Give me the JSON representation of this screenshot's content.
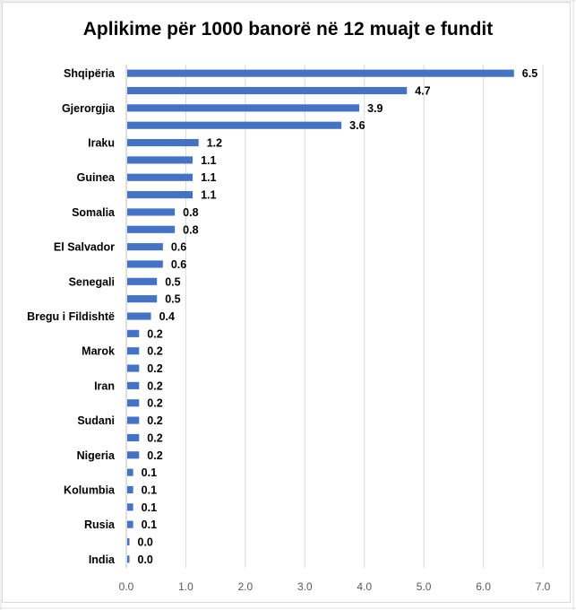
{
  "chart_data": {
    "type": "bar",
    "orientation": "horizontal",
    "title": "Aplikime për 1000 banorë në 12 muajt e fundit",
    "xlabel": "",
    "ylabel": "",
    "xlim": [
      0,
      7
    ],
    "xticks": [
      0,
      1,
      2,
      3,
      4,
      5,
      6,
      7
    ],
    "xtick_labels": [
      "0.0",
      "1.0",
      "2.0",
      "3.0",
      "4.0",
      "5.0",
      "6.0",
      "7.0"
    ],
    "grid": "vertical",
    "legend": "none",
    "bar_color": "#4472c4",
    "categories": [
      "Shqipëria",
      "",
      "Gjerorgjia",
      "",
      "Iraku",
      "",
      "Guinea",
      "",
      "Somalia",
      "",
      "El Salvador",
      "",
      "Senegali",
      "",
      "Bregu i Fildishtë",
      "",
      "Marok",
      "",
      "Iran",
      "",
      "Sudani",
      "",
      "Nigeria",
      "",
      "Kolumbia",
      "",
      "Rusia",
      "",
      "India"
    ],
    "values": [
      6.5,
      4.7,
      3.9,
      3.6,
      1.2,
      1.1,
      1.1,
      1.1,
      0.8,
      0.8,
      0.6,
      0.6,
      0.5,
      0.5,
      0.4,
      0.2,
      0.2,
      0.2,
      0.2,
      0.2,
      0.2,
      0.2,
      0.2,
      0.1,
      0.1,
      0.1,
      0.1,
      0.0,
      0.0
    ],
    "value_labels": [
      "6.5",
      "4.7",
      "3.9",
      "3.6",
      "1.2",
      "1.1",
      "1.1",
      "1.1",
      "0.8",
      "0.8",
      "0.6",
      "0.6",
      "0.5",
      "0.5",
      "0.4",
      "0.2",
      "0.2",
      "0.2",
      "0.2",
      "0.2",
      "0.2",
      "0.2",
      "0.2",
      "0.1",
      "0.1",
      "0.1",
      "0.1",
      "0.0",
      "0.0"
    ]
  }
}
